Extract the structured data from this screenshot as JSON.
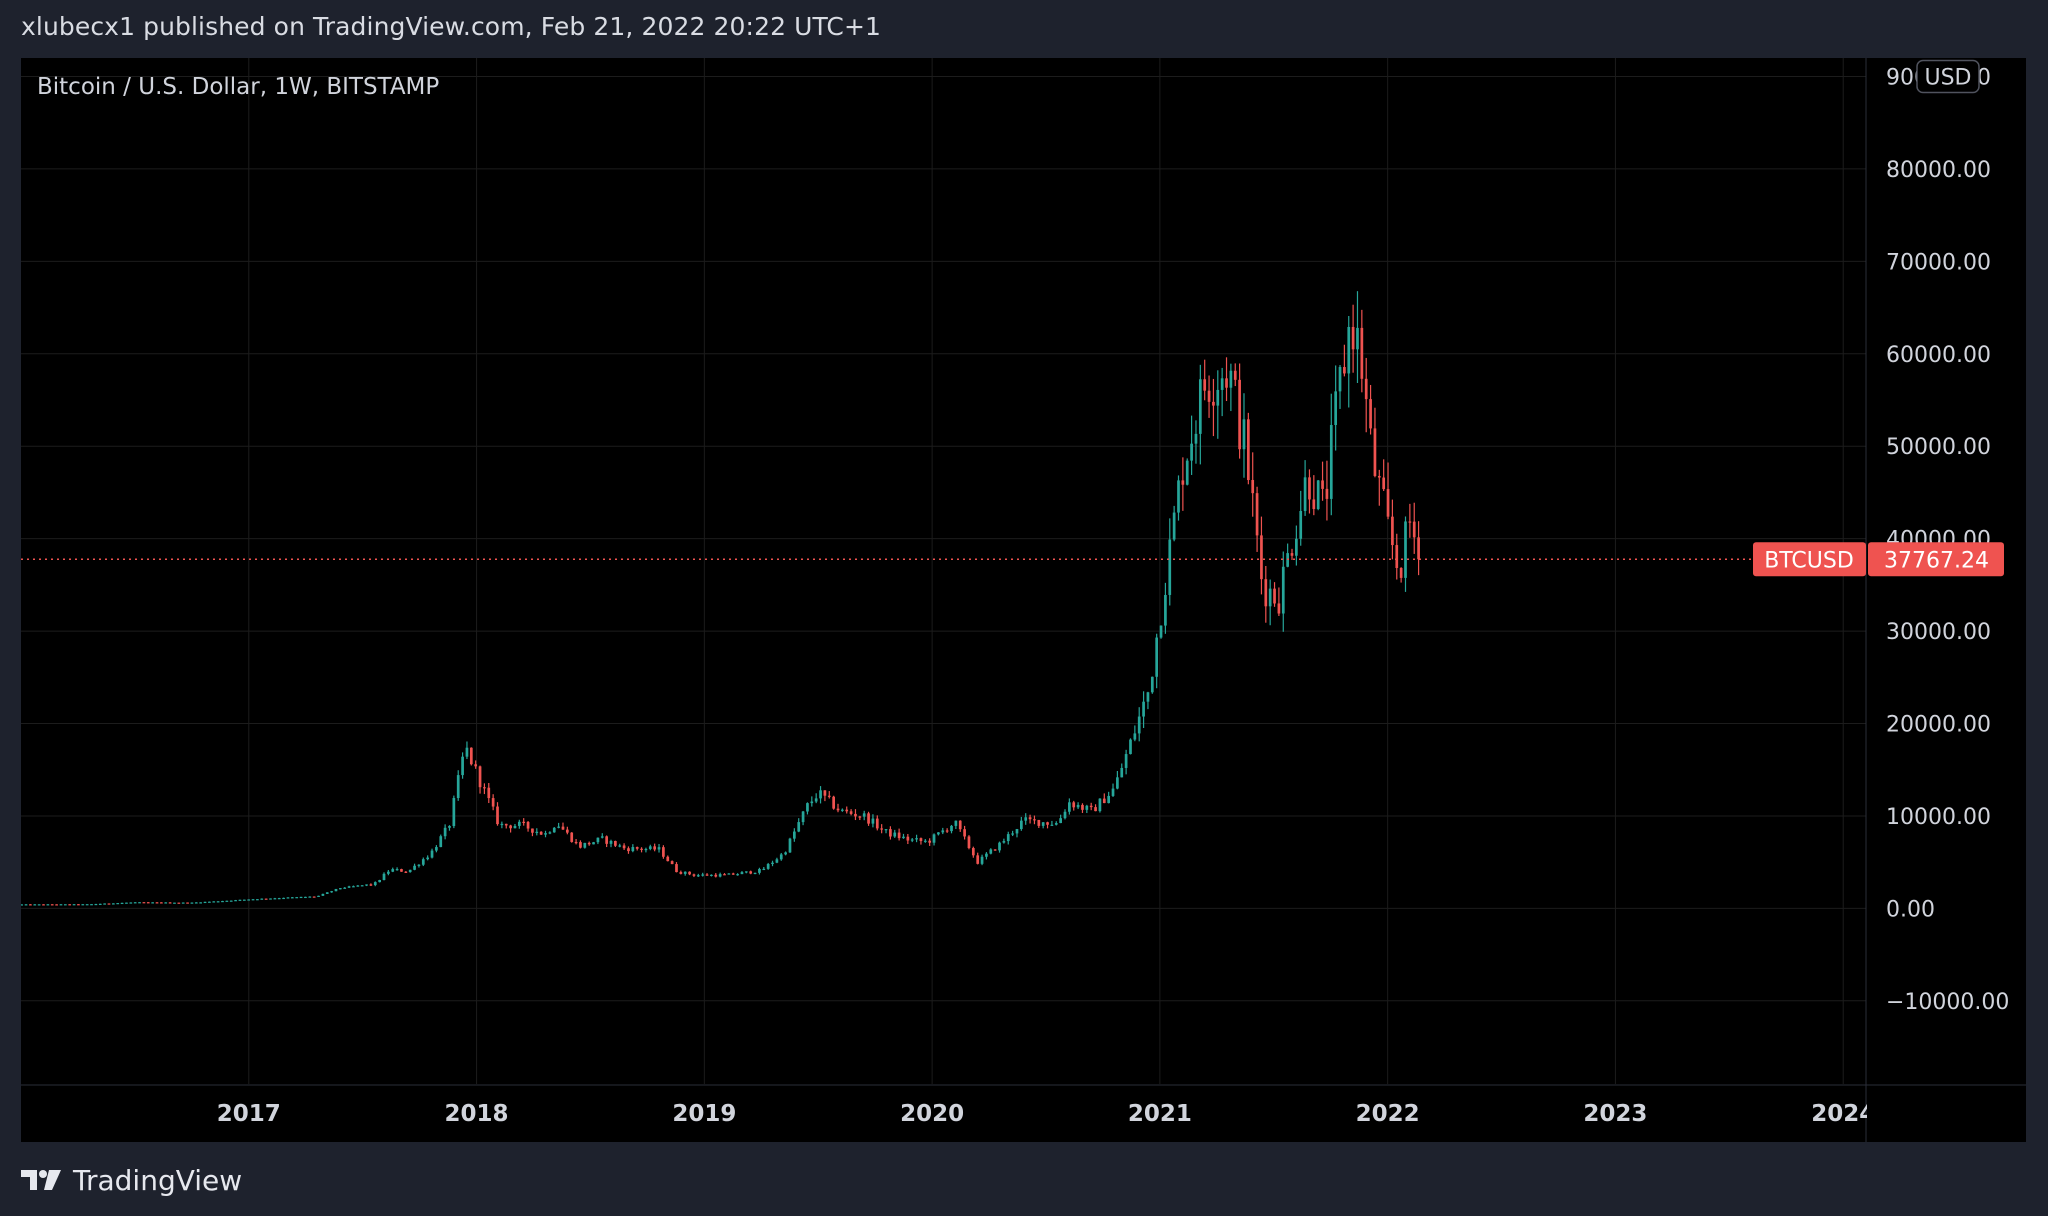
{
  "header": {
    "publish_line": "xlubecx1 published on TradingView.com, Feb 21, 2022 20:22 UTC+1"
  },
  "footer": {
    "brand": "TradingView"
  },
  "colors": {
    "background": "#000000",
    "frame": "#1e222d",
    "up": "#26a69a",
    "down": "#ef5350",
    "grid": "#1c1c1c",
    "text": "#d1d4dc"
  },
  "chart_data": {
    "type": "candlestick",
    "title": "Bitcoin / U.S. Dollar, 1W, BITSTAMP",
    "symbol": "BTCUSD",
    "currency": "USD",
    "last_price": 37767.24,
    "last_price_label": "37767.24",
    "ylim": [
      -19000,
      92000
    ],
    "y_ticks": [
      -10000,
      0,
      10000,
      20000,
      30000,
      40000,
      50000,
      60000,
      70000,
      80000,
      90000
    ],
    "y_tick_labels": [
      "−10000.00",
      "0.00",
      "10000.00",
      "20000.00",
      "30000.00",
      "40000.00",
      "50000.00",
      "60000.00",
      "70000.00",
      "80000.00",
      "90000.00"
    ],
    "x_range": [
      2016.0,
      2024.1
    ],
    "x_ticks": [
      2017,
      2018,
      2019,
      2020,
      2021,
      2022,
      2023,
      2024
    ],
    "x_tick_labels": [
      "2017",
      "2018",
      "2019",
      "2020",
      "2021",
      "2022",
      "2023",
      "2024"
    ],
    "grid": true,
    "price_anchors": [
      [
        2016.0,
        430
      ],
      [
        2016.3,
        450
      ],
      [
        2016.5,
        660
      ],
      [
        2016.75,
        620
      ],
      [
        2016.95,
        900
      ],
      [
        2017.0,
        980
      ],
      [
        2017.15,
        1150
      ],
      [
        2017.3,
        1300
      ],
      [
        2017.4,
        2200
      ],
      [
        2017.5,
        2500
      ],
      [
        2017.55,
        2600
      ],
      [
        2017.62,
        4200
      ],
      [
        2017.7,
        4000
      ],
      [
        2017.8,
        6000
      ],
      [
        2017.88,
        9000
      ],
      [
        2017.95,
        17500
      ],
      [
        2018.02,
        13500
      ],
      [
        2018.1,
        9000
      ],
      [
        2018.2,
        9000
      ],
      [
        2018.3,
        8000
      ],
      [
        2018.35,
        9300
      ],
      [
        2018.45,
        6700
      ],
      [
        2018.55,
        7500
      ],
      [
        2018.65,
        6500
      ],
      [
        2018.8,
        6400
      ],
      [
        2018.88,
        4000
      ],
      [
        2018.96,
        3600
      ],
      [
        2019.1,
        3600
      ],
      [
        2019.25,
        4100
      ],
      [
        2019.35,
        6000
      ],
      [
        2019.45,
        11000
      ],
      [
        2019.5,
        12500
      ],
      [
        2019.6,
        10500
      ],
      [
        2019.7,
        10000
      ],
      [
        2019.8,
        8200
      ],
      [
        2019.9,
        7400
      ],
      [
        2019.98,
        7200
      ],
      [
        2020.1,
        9300
      ],
      [
        2020.2,
        5000
      ],
      [
        2020.3,
        7000
      ],
      [
        2020.4,
        9500
      ],
      [
        2020.55,
        9200
      ],
      [
        2020.6,
        11500
      ],
      [
        2020.7,
        10500
      ],
      [
        2020.8,
        13000
      ],
      [
        2020.88,
        18500
      ],
      [
        2020.95,
        23500
      ],
      [
        2021.02,
        35000
      ],
      [
        2021.1,
        48000
      ],
      [
        2021.2,
        57000
      ],
      [
        2021.3,
        58500
      ],
      [
        2021.38,
        49000
      ],
      [
        2021.45,
        35000
      ],
      [
        2021.52,
        33500
      ],
      [
        2021.58,
        40000
      ],
      [
        2021.65,
        47000
      ],
      [
        2021.72,
        43000
      ],
      [
        2021.78,
        55000
      ],
      [
        2021.84,
        64000
      ],
      [
        2021.88,
        60000
      ],
      [
        2021.93,
        49000
      ],
      [
        2022.0,
        41000
      ],
      [
        2022.05,
        36500
      ],
      [
        2022.1,
        42000
      ],
      [
        2022.14,
        37767
      ]
    ]
  }
}
